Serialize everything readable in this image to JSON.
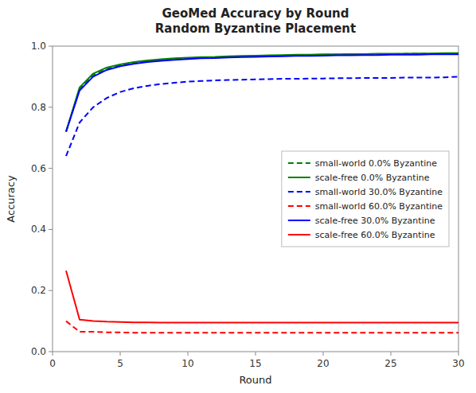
{
  "chart_data": {
    "type": "line",
    "title": "GeoMed Accuracy by Round\nRandom Byzantine Placement",
    "xlabel": "Round",
    "ylabel": "Accuracy",
    "xlim": [
      0,
      30
    ],
    "ylim": [
      0.0,
      1.0
    ],
    "xticks": [
      0,
      5,
      10,
      15,
      20,
      25,
      30
    ],
    "yticks": [
      {
        "value": 0.0,
        "label": "0.0"
      },
      0.2,
      0.4,
      0.6,
      0.8,
      {
        "value": 1.0,
        "label": "1.0"
      }
    ],
    "x": [
      1,
      2,
      3,
      4,
      5,
      6,
      7,
      8,
      9,
      10,
      11,
      12,
      13,
      14,
      15,
      16,
      17,
      18,
      19,
      20,
      21,
      22,
      23,
      24,
      25,
      26,
      27,
      28,
      29,
      30
    ],
    "grid": false,
    "legend": "right",
    "series": [
      {
        "name": "small-world 0.0% Byzantine",
        "color": "#008000",
        "line_style": "dashed",
        "values": [
          0.72,
          0.86,
          0.905,
          0.925,
          0.937,
          0.945,
          0.95,
          0.954,
          0.957,
          0.96,
          0.962,
          0.963,
          0.965,
          0.966,
          0.967,
          0.968,
          0.969,
          0.97,
          0.971,
          0.972,
          0.972,
          0.973,
          0.973,
          0.974,
          0.974,
          0.975,
          0.975,
          0.975,
          0.976,
          0.976
        ]
      },
      {
        "name": "scale-free 0.0% Byzantine",
        "color": "#008000",
        "line_style": "solid",
        "values": [
          0.72,
          0.865,
          0.91,
          0.93,
          0.94,
          0.948,
          0.953,
          0.957,
          0.96,
          0.962,
          0.964,
          0.965,
          0.967,
          0.968,
          0.969,
          0.97,
          0.971,
          0.972,
          0.972,
          0.973,
          0.973,
          0.974,
          0.974,
          0.975,
          0.975,
          0.975,
          0.976,
          0.976,
          0.977,
          0.977
        ]
      },
      {
        "name": "small-world 30.0% Byzantine",
        "color": "#0000FF",
        "line_style": "dashed",
        "values": [
          0.64,
          0.75,
          0.8,
          0.83,
          0.85,
          0.862,
          0.87,
          0.876,
          0.88,
          0.884,
          0.886,
          0.888,
          0.889,
          0.89,
          0.891,
          0.892,
          0.893,
          0.893,
          0.894,
          0.894,
          0.895,
          0.895,
          0.896,
          0.896,
          0.896,
          0.897,
          0.897,
          0.897,
          0.898,
          0.9
        ]
      },
      {
        "name": "small-world 60.0% Byzantine",
        "color": "#FF0000",
        "line_style": "dashed",
        "values": [
          0.1,
          0.065,
          0.065,
          0.063,
          0.063,
          0.062,
          0.062,
          0.062,
          0.062,
          0.062,
          0.062,
          0.062,
          0.062,
          0.062,
          0.062,
          0.062,
          0.062,
          0.062,
          0.062,
          0.062,
          0.062,
          0.062,
          0.062,
          0.062,
          0.062,
          0.062,
          0.062,
          0.062,
          0.062,
          0.062
        ]
      },
      {
        "name": "scale-free 30.0% Byzantine",
        "color": "#0000FF",
        "line_style": "solid",
        "values": [
          0.72,
          0.855,
          0.9,
          0.922,
          0.934,
          0.942,
          0.948,
          0.952,
          0.955,
          0.958,
          0.96,
          0.961,
          0.963,
          0.964,
          0.965,
          0.966,
          0.967,
          0.968,
          0.968,
          0.969,
          0.97,
          0.97,
          0.971,
          0.971,
          0.972,
          0.972,
          0.972,
          0.973,
          0.973,
          0.973
        ]
      },
      {
        "name": "scale-free 60.0% Byzantine",
        "color": "#FF0000",
        "line_style": "solid",
        "values": [
          0.265,
          0.105,
          0.1,
          0.098,
          0.097,
          0.096,
          0.096,
          0.095,
          0.095,
          0.095,
          0.095,
          0.095,
          0.095,
          0.095,
          0.095,
          0.095,
          0.095,
          0.095,
          0.095,
          0.095,
          0.095,
          0.095,
          0.095,
          0.095,
          0.095,
          0.095,
          0.095,
          0.095,
          0.095,
          0.095
        ]
      }
    ]
  }
}
